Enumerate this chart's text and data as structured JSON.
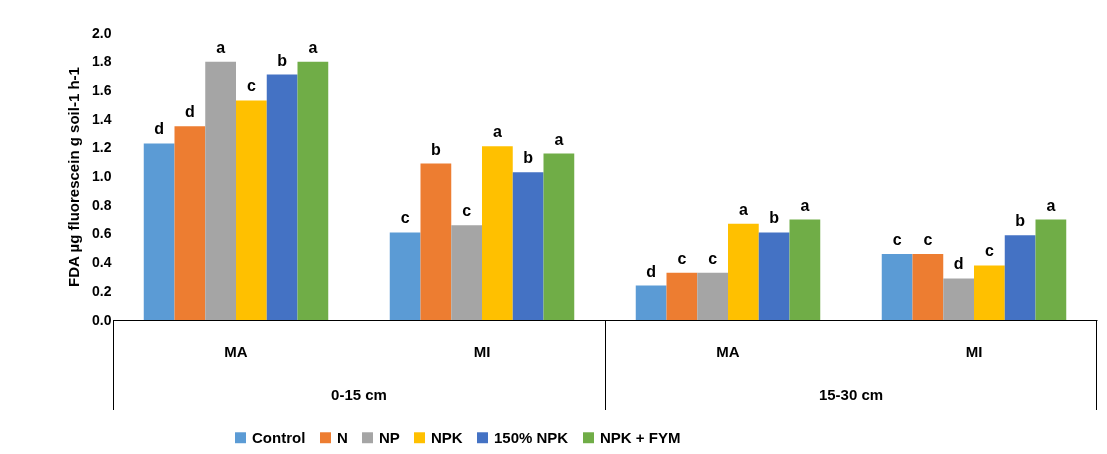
{
  "chart_data": {
    "type": "bar",
    "ylabel": "FDA µg fluorescein  g soil-1 h-1",
    "categories": [
      "MA",
      "MI",
      "MA",
      "MI"
    ],
    "annotations": [
      "0-15 cm",
      "15-30 cm"
    ],
    "series": [
      {
        "name": "Control",
        "color": "#5b9bd5",
        "values": [
          1.23,
          0.61,
          0.24,
          0.46
        ],
        "value_labels": [
          "d",
          "c",
          "d",
          "c"
        ]
      },
      {
        "name": "N",
        "color": "#ed7d31",
        "values": [
          1.35,
          1.09,
          0.33,
          0.46
        ],
        "value_labels": [
          "d",
          "b",
          "c",
          "c"
        ]
      },
      {
        "name": "NP",
        "color": "#a5a5a5",
        "values": [
          1.8,
          0.66,
          0.33,
          0.29
        ],
        "value_labels": [
          "a",
          "c",
          "c",
          "d"
        ]
      },
      {
        "name": "NPK",
        "color": "#ffc000",
        "values": [
          1.53,
          1.21,
          0.67,
          0.38
        ],
        "value_labels": [
          "c",
          "a",
          "a",
          "c"
        ]
      },
      {
        "name": "150% NPK",
        "color": "#4472c4",
        "values": [
          1.71,
          1.03,
          0.61,
          0.59
        ],
        "value_labels": [
          "b",
          "b",
          "b",
          "b"
        ]
      },
      {
        "name": "NPK + FYM",
        "color": "#70ad47",
        "values": [
          1.8,
          1.16,
          0.7,
          0.7
        ],
        "value_labels": [
          "a",
          "a",
          "a",
          "a"
        ]
      }
    ],
    "ylim": [
      0,
      2
    ],
    "yticks": [
      {
        "value": 0,
        "label": "0.0"
      },
      {
        "value": 0.2,
        "label": "0.2"
      },
      {
        "value": 0.4,
        "label": "0.4"
      },
      {
        "value": 0.6,
        "label": "0.6"
      },
      {
        "value": 0.8,
        "label": "0.8"
      },
      {
        "value": 1,
        "label": "1.0"
      },
      {
        "value": 1.2,
        "label": "1.2"
      },
      {
        "value": 1.4,
        "label": "1.4"
      },
      {
        "value": 1.6,
        "label": "1.6"
      },
      {
        "value": 1.8,
        "label": "1.8"
      },
      {
        "value": 2,
        "label": "2.0"
      }
    ],
    "grid": false,
    "legend": "bottom"
  }
}
